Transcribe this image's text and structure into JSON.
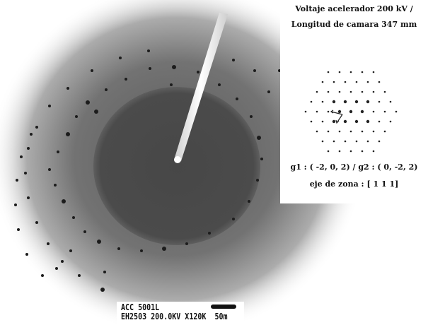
{
  "figure": {
    "background_color": "#ffffff",
    "halo_color": "#8a8a8a",
    "core_color": "#474747",
    "spot_color": "#1c1c1c"
  },
  "info_panel": {
    "line1": "Voltaje acelerador 200 kV /",
    "line2": "Longitud de camara 347 mm",
    "g_vectors": "g1 : ( -2,  0,  2) / g2 : ( 0, -2,  2)",
    "zone_axis": "eje de zona : [  1   1   1]"
  },
  "micrograph_label": {
    "line1": "ACC  5001L",
    "line2": "EH2503  200.0KV  X120K",
    "scale_bar_label": "50m"
  }
}
